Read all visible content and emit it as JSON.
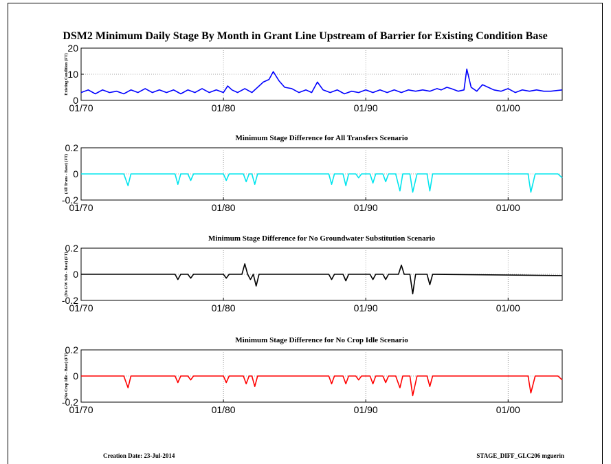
{
  "page": {
    "title": "DSM2 Minimum Daily Stage By Month in Grant Line Upstream of Barrier for Existing Condition Base",
    "creation_date_label": "Creation Date:  23-Jul-2014",
    "file_label": "STAGE_DIFF_GLC206 mguerin"
  },
  "chart_data": [
    {
      "type": "line",
      "title": "",
      "ylabel": "Existing Condition (FT)",
      "xlabel": "",
      "color": "#0000ff",
      "xlim": [
        1970.0,
        2003.8
      ],
      "ylim": [
        0,
        20
      ],
      "yticks": [
        "20",
        "10",
        "0"
      ],
      "xticks": [
        "01/70",
        "01/80",
        "01/90",
        "01/00"
      ],
      "grid": true,
      "series": [
        {
          "x": [
            1970.0,
            1970.5,
            1971.0,
            1971.5,
            1972.0,
            1972.5,
            1973.0,
            1973.5,
            1974.0,
            1974.5,
            1975.0,
            1975.5,
            1976.0,
            1976.5,
            1977.0,
            1977.5,
            1978.0,
            1978.5,
            1979.0,
            1979.5,
            1980.0,
            1980.3,
            1980.6,
            1981.0,
            1981.5,
            1982.0,
            1982.5,
            1982.8,
            1983.2,
            1983.5,
            1983.9,
            1984.3,
            1984.8,
            1985.3,
            1985.8,
            1986.2,
            1986.6,
            1987.0,
            1987.5,
            1988.0,
            1988.5,
            1989.0,
            1989.5,
            1990.0,
            1990.5,
            1991.0,
            1991.5,
            1992.0,
            1992.5,
            1993.0,
            1993.5,
            1994.0,
            1994.5,
            1995.0,
            1995.3,
            1995.7,
            1996.0,
            1996.5,
            1996.9,
            1997.1,
            1997.4,
            1997.8,
            1998.2,
            1998.6,
            1999.0,
            1999.5,
            2000.0,
            2000.5,
            2001.0,
            2001.5,
            2002.0,
            2002.5,
            2003.0,
            2003.8
          ],
          "y": [
            3,
            4,
            2.5,
            4,
            3,
            3.5,
            2.5,
            4,
            3,
            4.5,
            3,
            4,
            3,
            4,
            2.5,
            4,
            3,
            4.5,
            3,
            4,
            3,
            5.5,
            4,
            3,
            4.5,
            3,
            5.5,
            7,
            8,
            11,
            7.5,
            5,
            4.5,
            3,
            4,
            3,
            7,
            4,
            3,
            4,
            2.5,
            3.5,
            3,
            4,
            3,
            4,
            3,
            4,
            3,
            4,
            3.5,
            4,
            3.5,
            4.5,
            4,
            5,
            4.5,
            3.5,
            4,
            12,
            5,
            3.5,
            6,
            5,
            4,
            3.5,
            4.5,
            3,
            4,
            3.5,
            4,
            3.5,
            3.5,
            4
          ]
        }
      ]
    },
    {
      "type": "line",
      "title": "Minimum Stage Difference for All Transfers Scenario",
      "ylabel": "(All Trans - Base) (FT)",
      "xlabel": "",
      "color": "#00e5ee",
      "xlim": [
        1970.0,
        2003.8
      ],
      "ylim": [
        -0.2,
        0.2
      ],
      "yticks": [
        "0.2",
        "0",
        "-0.2"
      ],
      "xticks": [
        "01/70",
        "01/80",
        "01/90",
        "01/00"
      ],
      "grid": true,
      "series": [
        {
          "x": [
            1970.0,
            1973.0,
            1973.3,
            1973.5,
            1976.6,
            1976.8,
            1977.0,
            1977.5,
            1977.7,
            1977.9,
            1980.0,
            1980.2,
            1980.4,
            1981.4,
            1981.6,
            1981.8,
            1982.0,
            1982.2,
            1982.4,
            1987.4,
            1987.6,
            1987.8,
            1988.4,
            1988.6,
            1988.8,
            1989.3,
            1989.5,
            1989.7,
            1990.3,
            1990.5,
            1990.7,
            1991.2,
            1991.4,
            1991.6,
            1992.1,
            1992.4,
            1992.6,
            1993.1,
            1993.3,
            1993.6,
            1994.3,
            1994.5,
            1994.7,
            2001.4,
            2001.6,
            2001.9,
            2003.5,
            2003.8
          ],
          "y": [
            0,
            0,
            -0.09,
            0,
            0,
            -0.08,
            0,
            0,
            -0.05,
            0,
            0,
            -0.05,
            0,
            0,
            -0.06,
            0,
            0,
            -0.08,
            0,
            0,
            -0.08,
            0,
            0,
            -0.09,
            0,
            0,
            -0.03,
            0,
            0,
            -0.07,
            0,
            0,
            -0.06,
            0,
            0,
            -0.13,
            0,
            0,
            -0.14,
            0,
            0,
            -0.13,
            0,
            0,
            -0.14,
            0,
            0,
            -0.03
          ]
        }
      ]
    },
    {
      "type": "line",
      "title": "Minimum Stage Difference for No Groundwater Substitution Scenario",
      "ylabel": "(No GW Sub - Base) (FT)",
      "xlabel": "",
      "color": "#000000",
      "xlim": [
        1970.0,
        2003.8
      ],
      "ylim": [
        -0.2,
        0.2
      ],
      "yticks": [
        "0.2",
        "0",
        "-0.2"
      ],
      "xticks": [
        "01/70",
        "01/80",
        "01/90",
        "01/00"
      ],
      "grid": true,
      "series": [
        {
          "x": [
            1970.0,
            1976.6,
            1976.8,
            1977.0,
            1977.5,
            1977.7,
            1977.9,
            1980.0,
            1980.2,
            1980.4,
            1981.3,
            1981.5,
            1981.7,
            1981.9,
            1982.1,
            1982.3,
            1982.5,
            1987.4,
            1987.6,
            1987.8,
            1988.4,
            1988.6,
            1988.8,
            1990.3,
            1990.5,
            1990.7,
            1991.2,
            1991.4,
            1991.6,
            1992.3,
            1992.5,
            1992.7,
            1993.1,
            1993.3,
            1993.5,
            1994.3,
            1994.5,
            1994.7,
            2003.8
          ],
          "y": [
            0,
            0,
            -0.04,
            0,
            0,
            -0.03,
            0,
            0,
            -0.03,
            0,
            0,
            0.08,
            0,
            -0.04,
            0,
            -0.09,
            0,
            0,
            -0.04,
            0,
            0,
            -0.05,
            0,
            0,
            -0.04,
            0,
            0,
            -0.04,
            0,
            0,
            0.07,
            0,
            0,
            -0.15,
            0,
            0,
            -0.08,
            0,
            -0.01
          ]
        }
      ]
    },
    {
      "type": "line",
      "title": "Minimum Stage Difference for No Crop Idle Scenario",
      "ylabel": "(No Crop Idle - Base) (FT)",
      "xlabel": "",
      "color": "#ff0000",
      "xlim": [
        1970.0,
        2003.8
      ],
      "ylim": [
        -0.2,
        0.2
      ],
      "yticks": [
        "0.2",
        "0",
        "-0.2"
      ],
      "xticks": [
        "01/70",
        "01/80",
        "01/90",
        "01/00"
      ],
      "grid": true,
      "series": [
        {
          "x": [
            1970.0,
            1973.0,
            1973.3,
            1973.5,
            1976.6,
            1976.8,
            1977.0,
            1977.5,
            1977.7,
            1977.9,
            1980.0,
            1980.2,
            1980.4,
            1981.4,
            1981.6,
            1981.8,
            1982.0,
            1982.2,
            1982.4,
            1987.4,
            1987.6,
            1987.8,
            1988.4,
            1988.6,
            1988.8,
            1989.3,
            1989.5,
            1989.7,
            1990.3,
            1990.5,
            1990.7,
            1991.2,
            1991.4,
            1991.6,
            1992.1,
            1992.4,
            1992.6,
            1993.1,
            1993.3,
            1993.6,
            1994.3,
            1994.5,
            1994.7,
            2001.4,
            2001.6,
            2001.9,
            2003.5,
            2003.8
          ],
          "y": [
            0,
            0,
            -0.09,
            0,
            0,
            -0.05,
            0,
            0,
            -0.03,
            0,
            0,
            -0.05,
            0,
            0,
            -0.06,
            0,
            0,
            -0.08,
            0,
            0,
            -0.06,
            0,
            0,
            -0.06,
            0,
            0,
            -0.03,
            0,
            0,
            -0.06,
            0,
            0,
            -0.05,
            0,
            0,
            -0.09,
            0,
            0,
            -0.15,
            0,
            0,
            -0.08,
            0,
            0,
            -0.13,
            0,
            0,
            -0.03
          ]
        }
      ]
    }
  ]
}
